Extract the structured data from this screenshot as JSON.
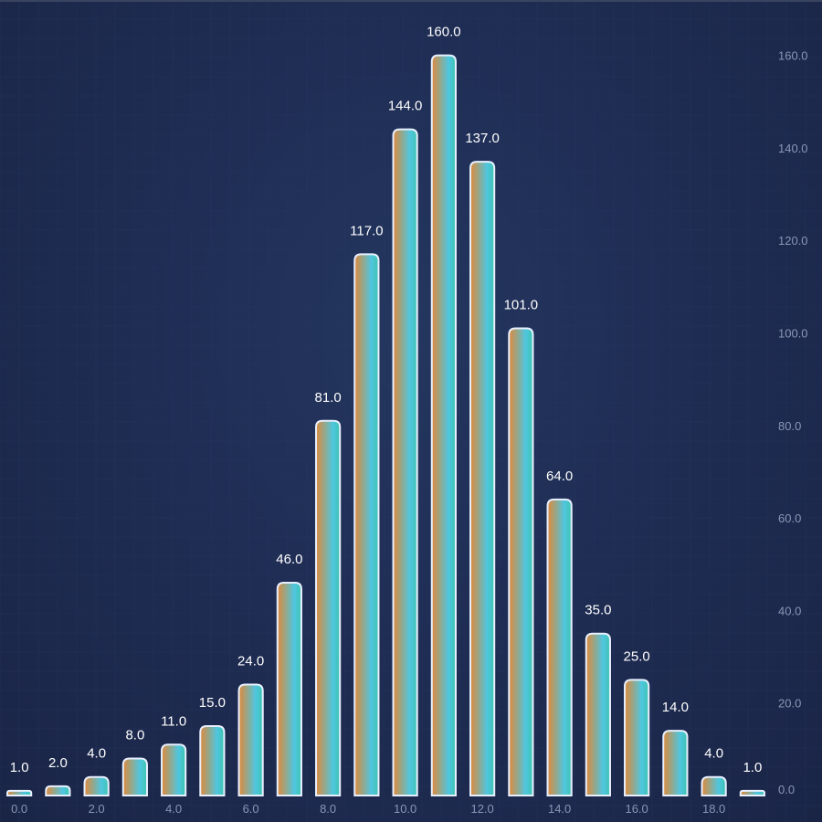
{
  "chart_data": {
    "type": "bar",
    "title": "",
    "xlabel": "",
    "ylabel": "",
    "x": [
      0,
      1,
      2,
      3,
      4,
      5,
      6,
      7,
      8,
      9,
      10,
      11,
      12,
      13,
      14,
      15,
      16,
      17,
      18,
      19
    ],
    "values": [
      1,
      2,
      4,
      8,
      11,
      15,
      24,
      46,
      81,
      117,
      144,
      160,
      137,
      101,
      64,
      35,
      25,
      14,
      4,
      1
    ],
    "data_labels": [
      "1.0",
      "2.0",
      "4.0",
      "8.0",
      "11.0",
      "15.0",
      "24.0",
      "46.0",
      "81.0",
      "117.0",
      "144.0",
      "160.0",
      "137.0",
      "101.0",
      "64.0",
      "35.0",
      "25.0",
      "14.0",
      "4.0",
      "1.0"
    ],
    "xlim": [
      -0.5,
      19.5
    ],
    "ylim": [
      0,
      170
    ],
    "x_ticks": [
      0,
      2,
      4,
      6,
      8,
      10,
      12,
      14,
      16,
      18
    ],
    "x_tick_labels": [
      "0.0",
      "2.0",
      "4.0",
      "6.0",
      "8.0",
      "10.0",
      "12.0",
      "14.0",
      "16.0",
      "18.0"
    ],
    "y_ticks": [
      0,
      20,
      40,
      60,
      80,
      100,
      120,
      140,
      160
    ],
    "y_tick_labels": [
      "0.0",
      "20.0",
      "40.0",
      "60.0",
      "80.0",
      "100.0",
      "120.0",
      "140.0",
      "160.0"
    ],
    "y_axis_position": "right",
    "grid": true,
    "legend": false,
    "colors": {
      "background": "#1f2d54",
      "grid": "#2a3b66",
      "bar_outline": "#e8f0ff",
      "tick_text": "#8a96b3",
      "label_text": "#ffffff",
      "gradient": [
        "#e08a3c",
        "#9aa585",
        "#4fc6e0",
        "#3ec4b0"
      ]
    }
  }
}
